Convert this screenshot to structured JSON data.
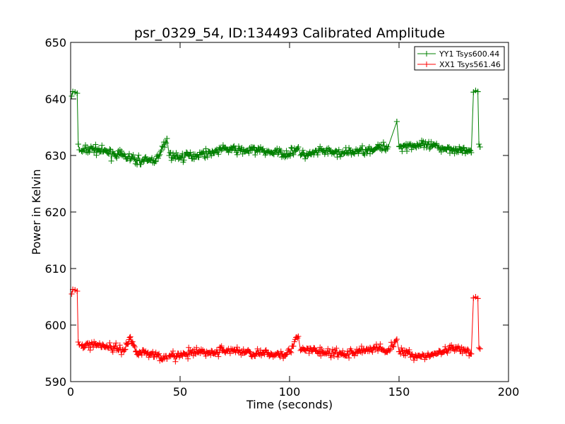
{
  "chart_data": {
    "type": "line",
    "title": "psr_0329_54, ID:134493 Calibrated Amplitude",
    "xlabel": "Time (seconds)",
    "ylabel": "Power in Kelvin",
    "xlim": [
      0,
      200
    ],
    "ylim": [
      590,
      650
    ],
    "xticks": [
      "0",
      "50",
      "100",
      "150",
      "200"
    ],
    "yticks": [
      "590",
      "600",
      "610",
      "620",
      "630",
      "640",
      "650"
    ],
    "grid": false,
    "legend": "top-right",
    "marker": "plus",
    "series": [
      {
        "name": "YY1 Tsys600.44",
        "color": "#008000",
        "x": [
          0.5,
          1,
          2,
          3,
          3.5,
          4,
          5,
          10,
          15,
          20,
          25,
          30,
          35,
          40,
          44,
          45,
          50,
          55,
          60,
          65,
          70,
          75,
          80,
          85,
          90,
          95,
          100,
          104,
          105,
          110,
          115,
          120,
          125,
          130,
          135,
          140,
          145,
          149,
          150,
          155,
          160,
          165,
          170,
          175,
          180,
          183,
          184,
          185,
          186,
          186.5,
          187
        ],
        "y": [
          640.5,
          641.3,
          641.2,
          641.0,
          632.0,
          631.0,
          630.8,
          631.2,
          630.7,
          630.3,
          629.8,
          629.2,
          629.0,
          629.5,
          633.0,
          630.0,
          629.7,
          630.0,
          630.3,
          630.6,
          631.2,
          631.0,
          630.8,
          631.0,
          630.6,
          630.5,
          630.3,
          631.5,
          630.0,
          630.2,
          630.8,
          630.5,
          630.4,
          630.7,
          631.0,
          631.3,
          631.5,
          636.0,
          631.6,
          631.8,
          631.8,
          631.6,
          631.3,
          631.2,
          630.8,
          630.5,
          641.2,
          641.5,
          641.3,
          632.0,
          631.5
        ]
      },
      {
        "name": "XX1 Tsys561.46",
        "color": "#ff0000",
        "x": [
          0.5,
          1,
          2,
          3,
          3.5,
          4,
          5,
          10,
          15,
          20,
          25,
          27,
          30,
          35,
          40,
          44,
          45,
          50,
          55,
          60,
          65,
          70,
          75,
          80,
          85,
          90,
          95,
          100,
          104,
          105,
          110,
          115,
          120,
          125,
          130,
          135,
          140,
          145,
          149,
          150,
          155,
          160,
          165,
          170,
          175,
          180,
          183,
          184,
          185,
          186,
          186.5,
          187
        ],
        "y": [
          605.5,
          606.3,
          606.2,
          606.0,
          597.0,
          596.5,
          596.3,
          596.6,
          596.4,
          595.9,
          595.7,
          597.8,
          595.4,
          595.0,
          594.7,
          594.0,
          594.5,
          594.6,
          595.0,
          595.3,
          595.0,
          595.6,
          595.5,
          595.2,
          595.0,
          594.8,
          594.9,
          595.3,
          598.0,
          595.5,
          595.6,
          595.2,
          595.0,
          594.8,
          595.2,
          595.7,
          595.9,
          595.5,
          597.5,
          595.3,
          594.9,
          594.4,
          594.8,
          595.2,
          595.8,
          595.4,
          594.9,
          604.8,
          605.0,
          604.7,
          596.0,
          595.8
        ]
      }
    ]
  }
}
